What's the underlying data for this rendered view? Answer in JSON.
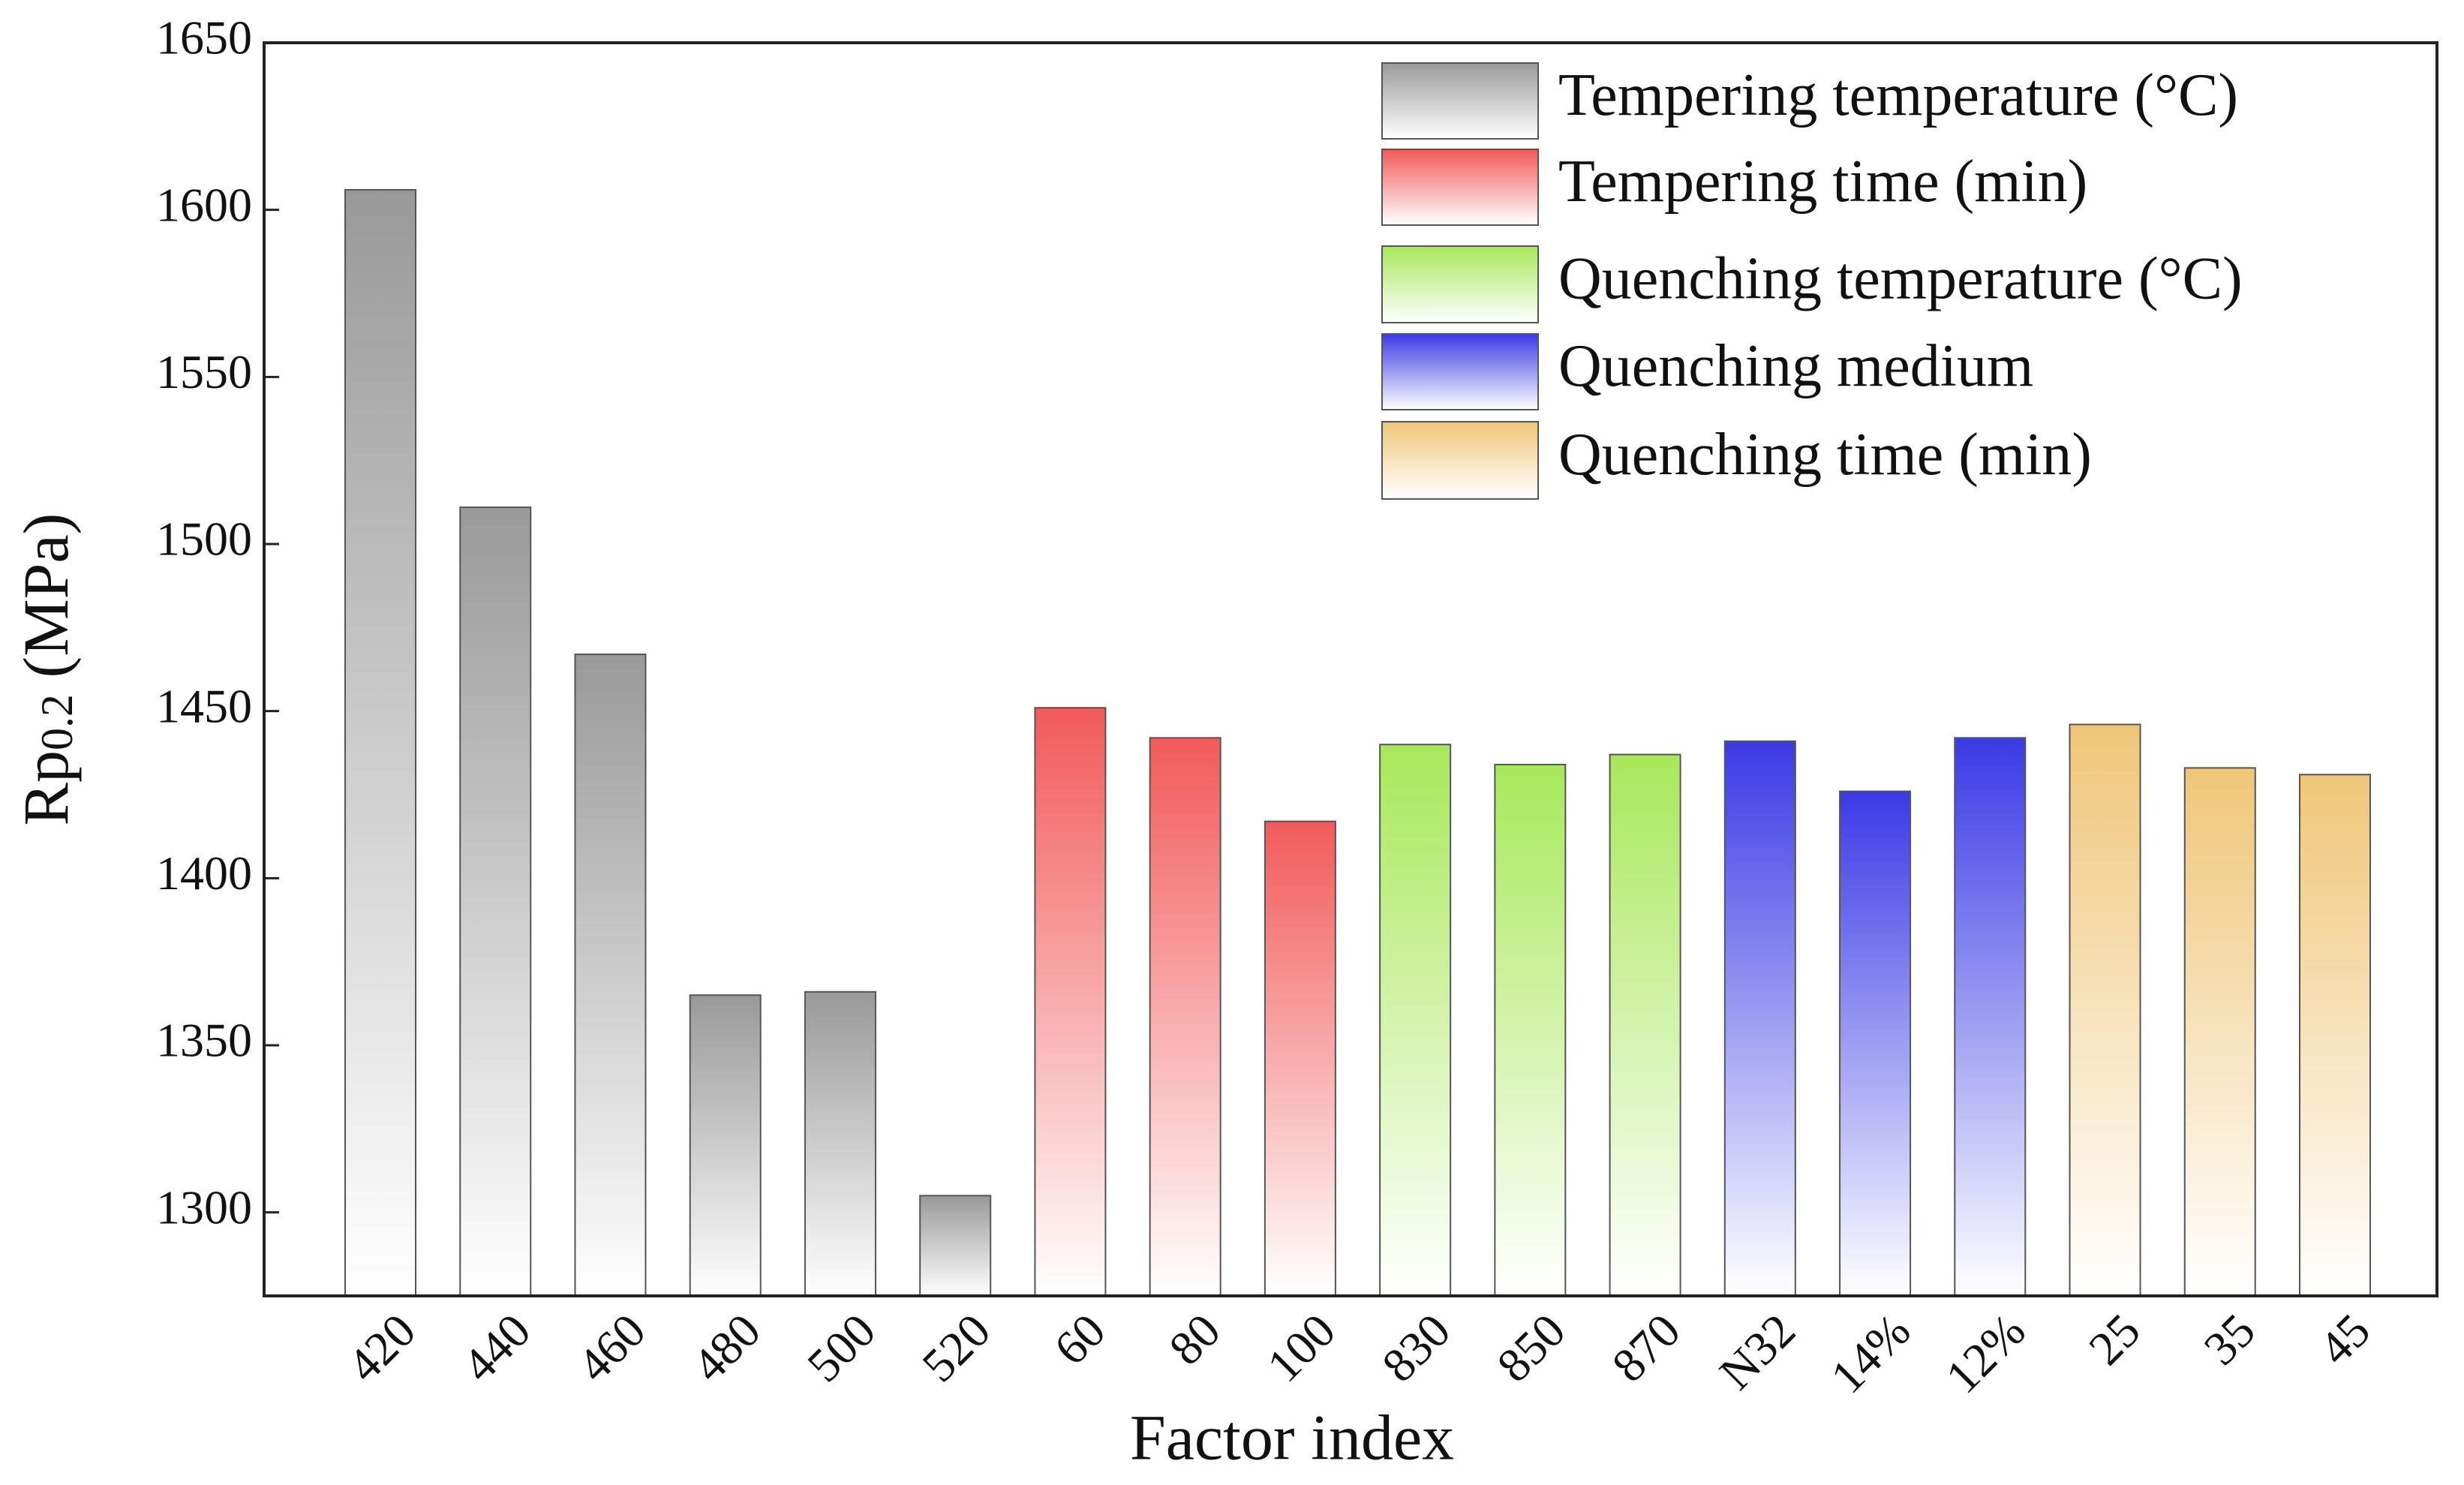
{
  "chart_data": {
    "type": "bar",
    "y_label_parts": [
      "Rp",
      "0.2",
      " (MPa)"
    ],
    "x_label": "Factor index",
    "categories": [
      "420",
      "440",
      "460",
      "480",
      "500",
      "520",
      "60",
      "80",
      "100",
      "830",
      "850",
      "870",
      "N32",
      "14%",
      "12%",
      "25",
      "35",
      "45"
    ],
    "series": [
      {
        "name": "Tempering temperature (°C)",
        "color": "#999999",
        "values": [
          1606,
          1511,
          1467,
          1365,
          1366,
          1305,
          null,
          null,
          null,
          null,
          null,
          null,
          null,
          null,
          null,
          null,
          null,
          null
        ]
      },
      {
        "name": "Tempering time (min)",
        "color": "#f25a5a",
        "values": [
          null,
          null,
          null,
          null,
          null,
          null,
          1451,
          1442,
          1417,
          null,
          null,
          null,
          null,
          null,
          null,
          null,
          null,
          null
        ]
      },
      {
        "name": "Quenching temperature (°C)",
        "color": "#a8e85a",
        "values": [
          null,
          null,
          null,
          null,
          null,
          null,
          null,
          null,
          null,
          1440,
          1434,
          1437,
          null,
          null,
          null,
          null,
          null,
          null
        ]
      },
      {
        "name": "Quenching medium",
        "color": "#3a3ae6",
        "values": [
          null,
          null,
          null,
          null,
          null,
          null,
          null,
          null,
          null,
          null,
          null,
          null,
          1441,
          1426,
          1442,
          null,
          null,
          null
        ]
      },
      {
        "name": "Quenching time (min)",
        "color": "#efc678",
        "values": [
          null,
          null,
          null,
          null,
          null,
          null,
          null,
          null,
          null,
          null,
          null,
          null,
          null,
          null,
          null,
          1446,
          1433,
          1431
        ]
      }
    ],
    "ylim": [
      1275,
      1650
    ],
    "yticks": [
      1300,
      1350,
      1400,
      1450,
      1500,
      1550,
      1600,
      1650
    ],
    "legend": "upper right"
  }
}
